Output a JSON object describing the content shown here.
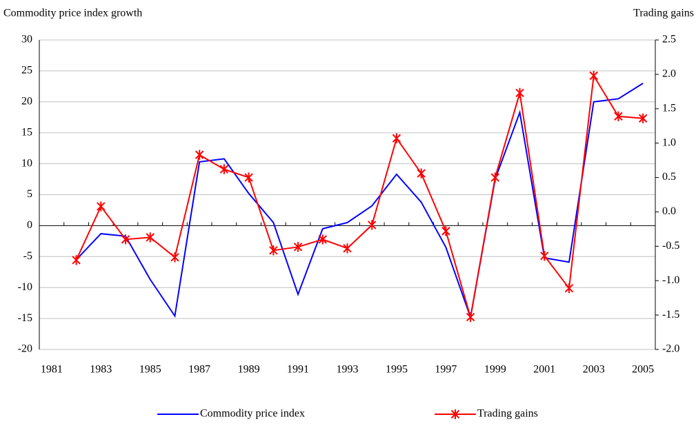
{
  "chart_data": {
    "type": "line",
    "y_label": "Commodity price index growth",
    "y2_label": "Trading gains",
    "categories": [
      "1981",
      null,
      "1983",
      null,
      "1985",
      null,
      "1987",
      null,
      "1989",
      null,
      "1991",
      null,
      "1993",
      null,
      "1995",
      null,
      "1997",
      null,
      "1999",
      null,
      "2001",
      null,
      "2003",
      null,
      "2005"
    ],
    "series": [
      {
        "name": "Commodity price index",
        "color": "#0000ff",
        "values": [
          null,
          -5.5,
          -1.3,
          -1.7,
          -8.7,
          -14.6,
          10.3,
          10.8,
          5.2,
          0.5,
          -11.1,
          -0.5,
          0.5,
          3.2,
          8.3,
          3.8,
          -3.5,
          -14.8,
          7.5,
          18.3,
          -5.2,
          -5.9,
          20.0,
          20.5,
          23.0
        ]
      },
      {
        "name": "Trading gains",
        "color": "#ff0000",
        "axis": "y2",
        "marker": "asterisk",
        "values": [
          null,
          -0.7,
          0.08,
          -0.4,
          -0.37,
          -0.66,
          0.83,
          0.62,
          0.5,
          -0.56,
          -0.51,
          -0.4,
          -0.53,
          -0.19,
          1.07,
          0.56,
          -0.28,
          -1.53,
          0.5,
          1.73,
          -0.64,
          -1.11,
          1.98,
          1.39,
          1.36
        ]
      }
    ],
    "ylim": [
      -20,
      30
    ],
    "yticks": [
      -20,
      -15,
      -10,
      -5,
      0,
      5,
      10,
      15,
      20,
      25,
      30
    ],
    "y2lim": [
      -2.0,
      2.5
    ],
    "y2ticks": [
      {
        "value": -2.0,
        "label": "-2.0"
      },
      -1.5,
      {
        "value": -1.0,
        "label": "-1.0"
      },
      -0.5,
      {
        "value": 0.0,
        "label": "0.0"
      },
      0.5,
      {
        "value": 1.0,
        "label": "1.0"
      },
      1.5,
      {
        "value": 2.0,
        "label": "2.0"
      },
      2.5
    ],
    "grid": true,
    "legend": "bottom"
  }
}
